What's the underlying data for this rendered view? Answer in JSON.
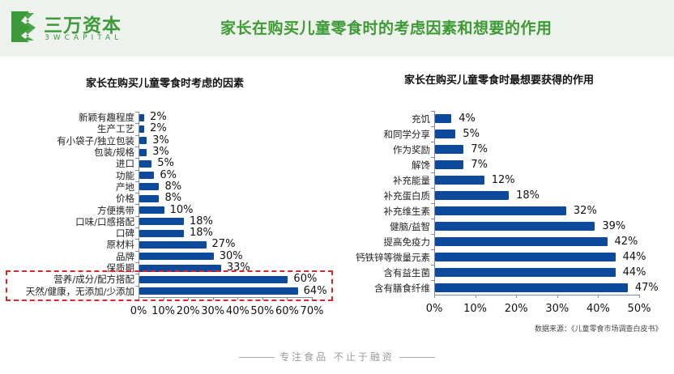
{
  "header": {
    "logo_cn": "三万资本",
    "logo_en": "3WCAPITAL",
    "title": "家长在购买儿童零食时的考虑因素和想要的作用",
    "bg_color": "#edf2ec",
    "brand_color": "#3d9a34"
  },
  "footer": {
    "slogan": "专注食品  不止于融资",
    "source": "数据来源：《儿童零食市场调查白皮书》"
  },
  "chart_data": [
    {
      "type": "bar",
      "orientation": "horizontal",
      "title": "家长在购买儿童零食时考虑的因素",
      "categories": [
        "新颖有趣程度",
        "生产工艺",
        "有小袋子/独立包装",
        "包装/规格",
        "进口",
        "功能",
        "产地",
        "价格",
        "方便携带",
        "口味/口感搭配",
        "口碑",
        "原材料",
        "品牌",
        "保质期",
        "营养/成分/配方搭配",
        "天然/健康，无添加/少添加"
      ],
      "values": [
        2,
        2,
        3,
        3,
        5,
        6,
        8,
        8,
        10,
        18,
        18,
        27,
        30,
        33,
        60,
        64
      ],
      "value_labels": [
        "2%",
        "2%",
        "3%",
        "3%",
        "5%",
        "6%",
        "8%",
        "8%",
        "10%",
        "18%",
        "18%",
        "27%",
        "30%",
        "33%",
        "60%",
        "64%"
      ],
      "xticks": [
        "0%",
        "10%",
        "20%",
        "30%",
        "40%",
        "50%",
        "60%",
        "70%"
      ],
      "xlim": [
        0,
        70
      ],
      "bar_color": "#0d4a9c",
      "annotation": "red dashed box highlighting 营养/成分/配方搭配 and 天然/健康，无添加/少添加",
      "grid": false
    },
    {
      "type": "bar",
      "orientation": "horizontal",
      "title": "家长在购买儿童零食时最想要获得的作用",
      "categories": [
        "充饥",
        "和同学分享",
        "作为奖励",
        "解馋",
        "补充能量",
        "补充蛋白质",
        "补充维生素",
        "健脑/益智",
        "提高免疫力",
        "钙铁锌等微量元素",
        "含有益生菌",
        "含有膳食纤维"
      ],
      "values": [
        4,
        5,
        7,
        7,
        12,
        18,
        32,
        39,
        42,
        44,
        44,
        47
      ],
      "value_labels": [
        "4%",
        "5%",
        "7%",
        "7%",
        "12%",
        "18%",
        "32%",
        "39%",
        "42%",
        "44%",
        "44%",
        "47%"
      ],
      "xticks": [
        "0%",
        "10%",
        "20%",
        "30%",
        "40%",
        "50%"
      ],
      "xlim": [
        0,
        50
      ],
      "bar_color": "#0d4a9c",
      "grid": false
    }
  ]
}
